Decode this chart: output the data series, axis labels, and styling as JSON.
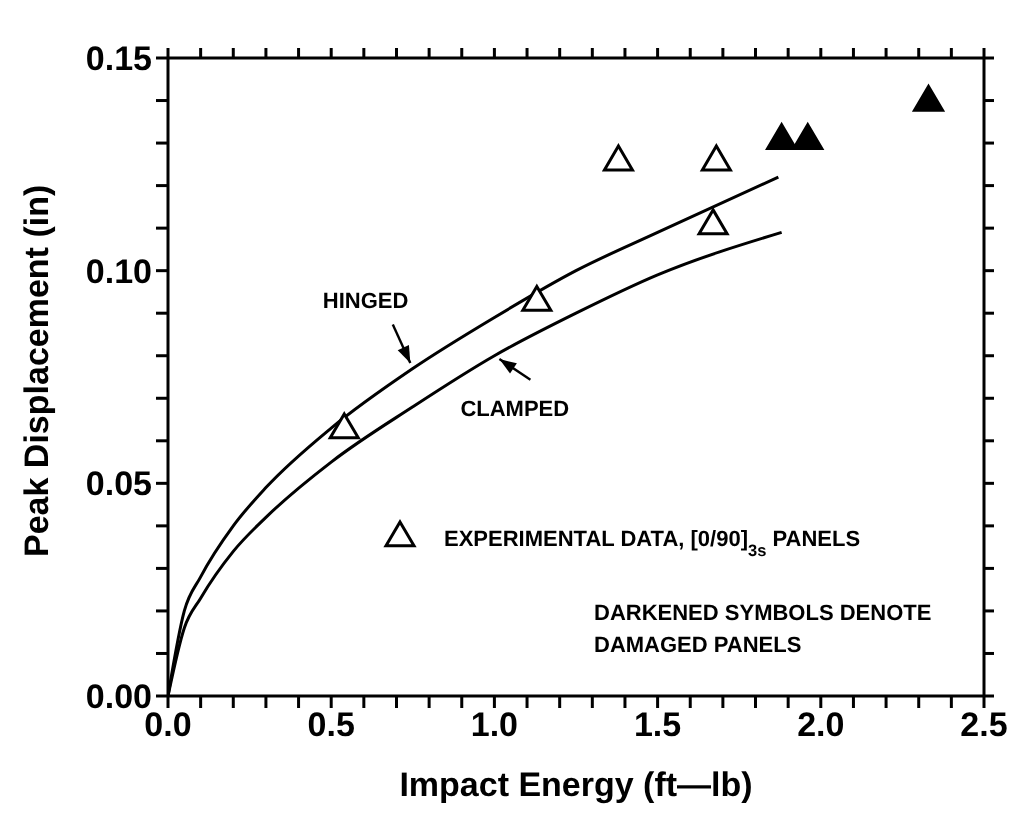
{
  "chart_data": {
    "type": "scatter",
    "xlabel": "Impact Energy (ft—lb)",
    "ylabel": "Peak Displacement (in)",
    "xlim": [
      0,
      2.5
    ],
    "ylim": [
      0,
      0.15
    ],
    "xticks": [
      {
        "value": 0,
        "label": "0.0"
      },
      {
        "value": 0.1,
        "label": null
      },
      {
        "value": 0.2,
        "label": null
      },
      {
        "value": 0.3,
        "label": null
      },
      {
        "value": 0.4,
        "label": null
      },
      {
        "value": 0.5,
        "label": "0.5"
      },
      {
        "value": 0.6,
        "label": null
      },
      {
        "value": 0.7,
        "label": null
      },
      {
        "value": 0.8,
        "label": null
      },
      {
        "value": 0.9,
        "label": null
      },
      {
        "value": 1,
        "label": "1.0"
      },
      {
        "value": 1.1,
        "label": null
      },
      {
        "value": 1.2,
        "label": null
      },
      {
        "value": 1.3,
        "label": null
      },
      {
        "value": 1.4,
        "label": null
      },
      {
        "value": 1.5,
        "label": "1.5"
      },
      {
        "value": 1.6,
        "label": null
      },
      {
        "value": 1.7,
        "label": null
      },
      {
        "value": 1.8,
        "label": null
      },
      {
        "value": 1.9,
        "label": null
      },
      {
        "value": 2,
        "label": "2.0"
      },
      {
        "value": 2.1,
        "label": null
      },
      {
        "value": 2.2,
        "label": null
      },
      {
        "value": 2.3,
        "label": null
      },
      {
        "value": 2.4,
        "label": null
      },
      {
        "value": 2.5,
        "label": "2.5"
      }
    ],
    "yticks": [
      {
        "value": 0,
        "label": "0.00"
      },
      {
        "value": 0.01,
        "label": null
      },
      {
        "value": 0.02,
        "label": null
      },
      {
        "value": 0.03,
        "label": null
      },
      {
        "value": 0.04,
        "label": null
      },
      {
        "value": 0.05,
        "label": "0.05"
      },
      {
        "value": 0.06,
        "label": null
      },
      {
        "value": 0.07,
        "label": null
      },
      {
        "value": 0.08,
        "label": null
      },
      {
        "value": 0.09,
        "label": null
      },
      {
        "value": 0.1,
        "label": "0.10"
      },
      {
        "value": 0.11,
        "label": null
      },
      {
        "value": 0.12,
        "label": null
      },
      {
        "value": 0.13,
        "label": null
      },
      {
        "value": 0.14,
        "label": null
      },
      {
        "value": 0.15,
        "label": "0.15"
      }
    ],
    "legend": "bottom right",
    "marker": "triangle",
    "series": [
      {
        "name": "HINGED",
        "type": "line",
        "marker": "none",
        "color": "#000000",
        "x": [
          0,
          0.05,
          0.1,
          0.2,
          0.3,
          0.5,
          0.75,
          1.0,
          1.25,
          1.5,
          1.87
        ],
        "values": [
          0,
          0.02,
          0.028,
          0.04,
          0.049,
          0.063,
          0.077,
          0.089,
          0.1,
          0.109,
          0.122
        ]
      },
      {
        "name": "CLAMPED",
        "type": "line",
        "marker": "none",
        "color": "#000000",
        "x": [
          0,
          0.05,
          0.1,
          0.2,
          0.3,
          0.5,
          0.75,
          1.0,
          1.25,
          1.5,
          1.88
        ],
        "values": [
          0,
          0.016,
          0.023,
          0.034,
          0.042,
          0.055,
          0.068,
          0.08,
          0.09,
          0.099,
          0.109
        ]
      },
      {
        "name": "EXPERIMENTAL DATA, [0/90]$_{3s}$ PANELS",
        "color": "#ffffff",
        "x": [
          0.54,
          1.13,
          1.38,
          1.68,
          1.67
        ],
        "values": [
          0.063,
          0.093,
          0.126,
          0.126,
          0.111
        ]
      },
      {
        "color": "#000000",
        "x": [
          1.88,
          1.96,
          2.33
        ],
        "values": [
          0.131,
          0.131,
          0.14
        ]
      }
    ],
    "annotations": [
      "DARKENED SYMBOLS DENOTE\nDAMAGED PANELS"
    ]
  }
}
